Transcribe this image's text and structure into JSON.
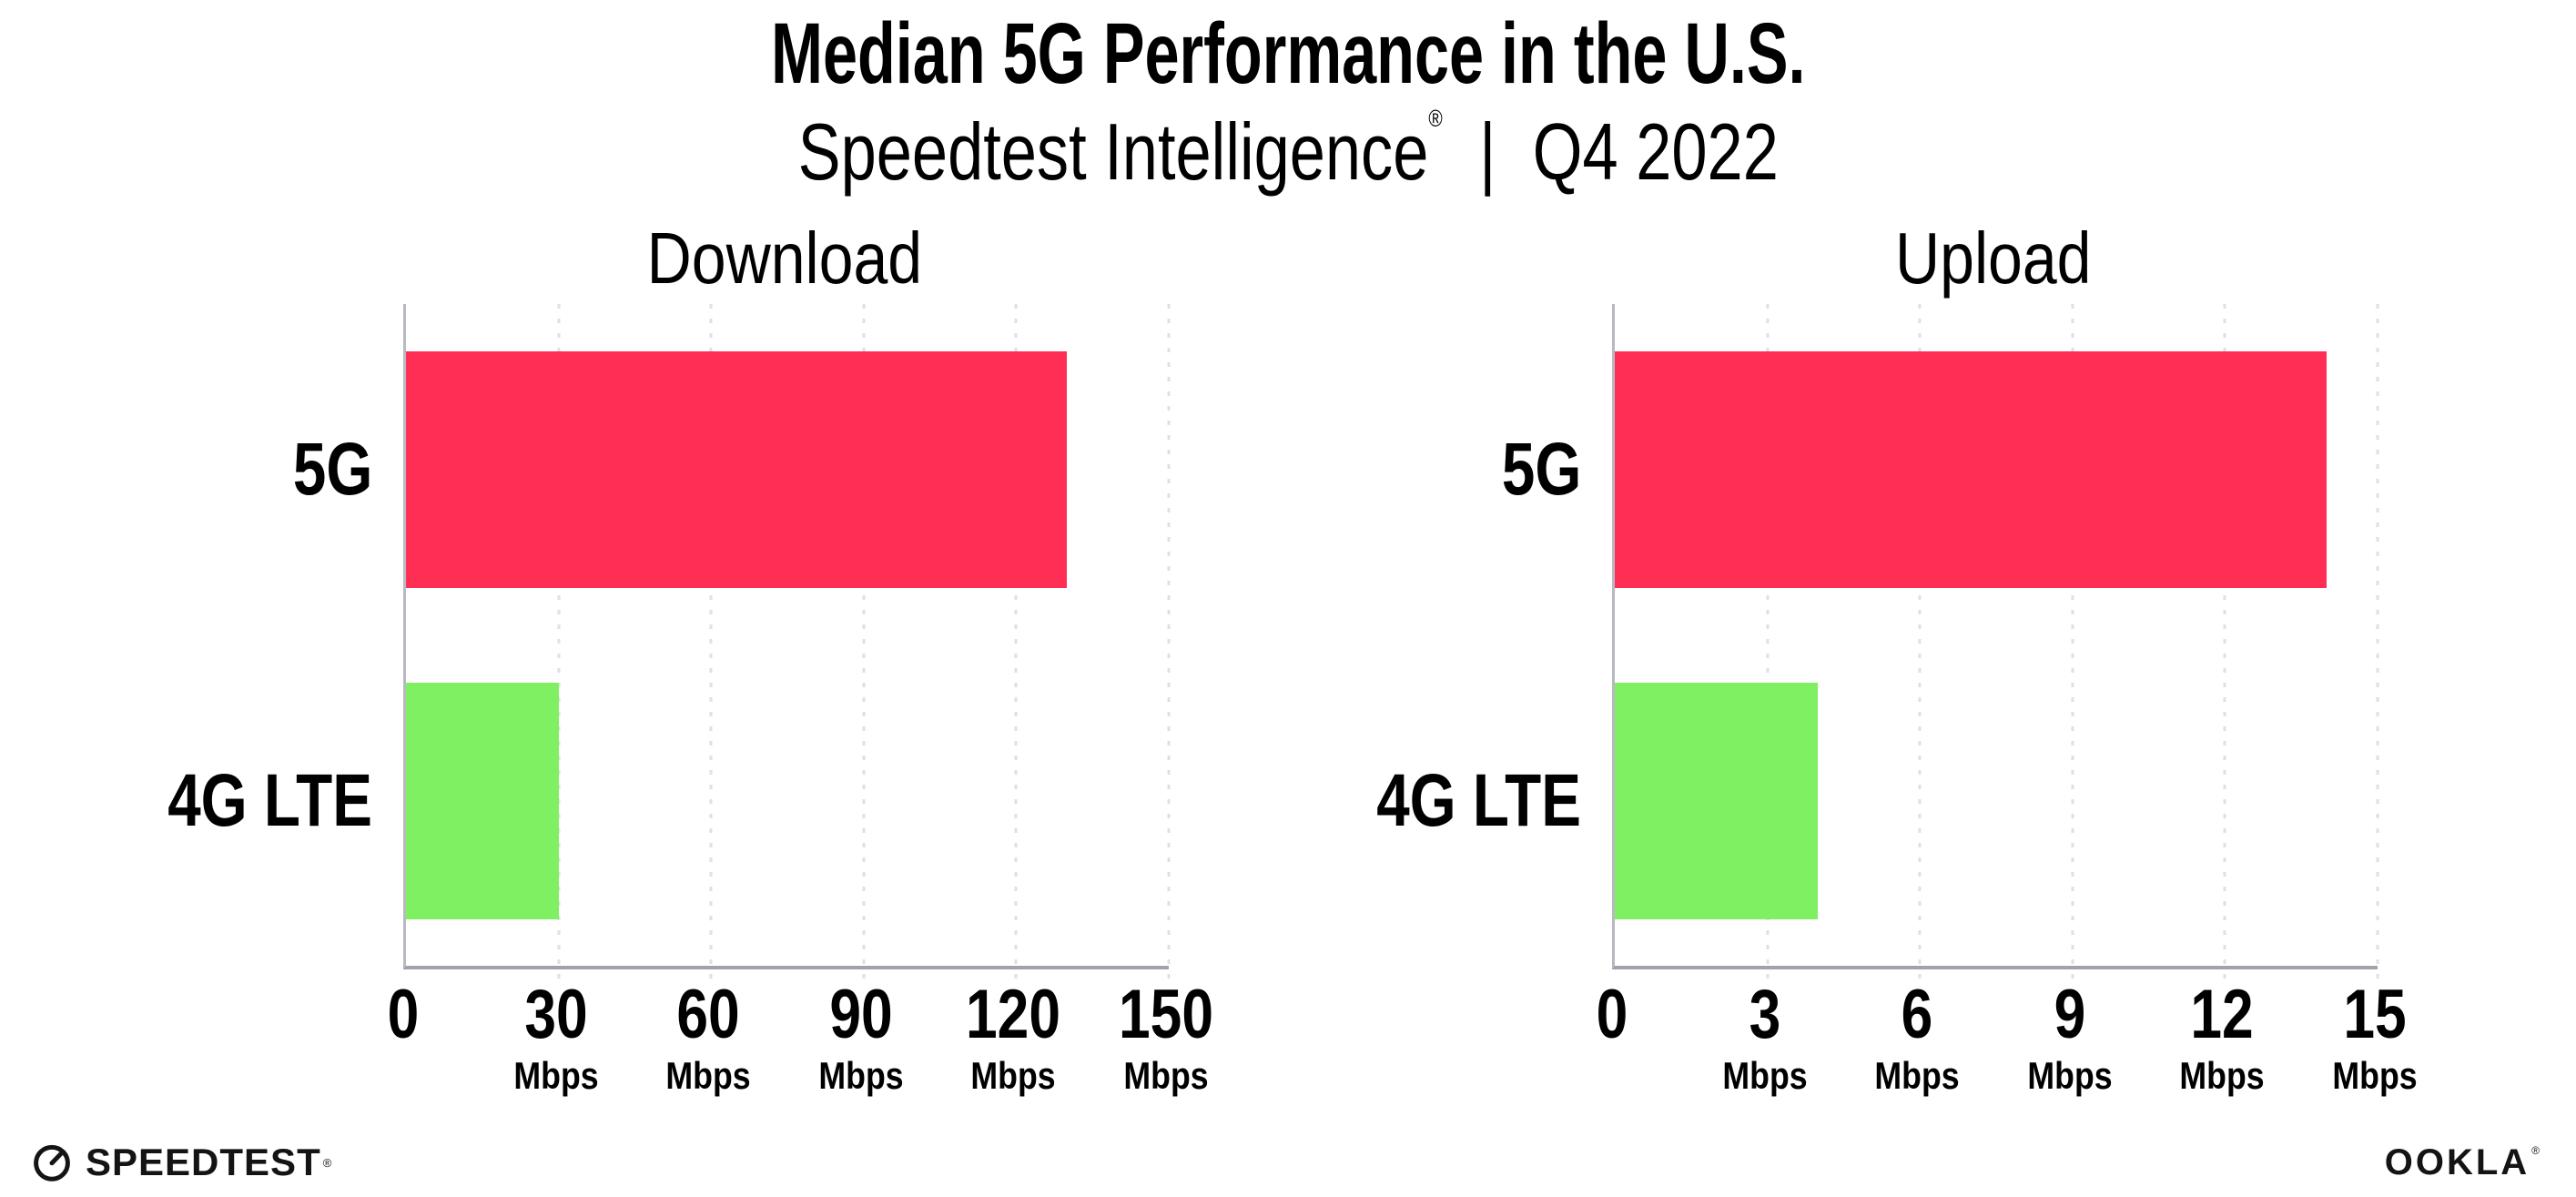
{
  "header": {
    "title": "Median 5G Performance in the U.S.",
    "subtitle_brand": "Speedtest Intelligence",
    "subtitle_reg": "®",
    "subtitle_sep": "|",
    "subtitle_period": "Q4 2022"
  },
  "colors": {
    "bar_5g": "#ff2e55",
    "bar_4g_lte": "#7ef062",
    "gridline": "#dfdfe9",
    "axis_bottom": "#a2a2aa",
    "axis_left": "#b9b9c1",
    "text": "#000000"
  },
  "chart_data": [
    {
      "type": "bar",
      "orientation": "horizontal",
      "title": "Download",
      "categories": [
        "5G",
        "4G LTE"
      ],
      "values": [
        130,
        30
      ],
      "unit": "Mbps",
      "xlim": [
        0,
        150
      ],
      "xticks": [
        0,
        30,
        60,
        90,
        120,
        150
      ],
      "bar_colors": [
        "#ff2e55",
        "#7ef062"
      ],
      "grid": "dotted-vertical",
      "legend": "none",
      "value_labels": "none"
    },
    {
      "type": "bar",
      "orientation": "horizontal",
      "title": "Upload",
      "categories": [
        "5G",
        "4G LTE"
      ],
      "values": [
        14,
        4
      ],
      "unit": "Mbps",
      "xlim": [
        0,
        15
      ],
      "xticks": [
        0,
        3,
        6,
        9,
        12,
        15
      ],
      "bar_colors": [
        "#ff2e55",
        "#7ef062"
      ],
      "grid": "dotted-vertical",
      "legend": "none",
      "value_labels": "none"
    }
  ],
  "footer": {
    "speedtest_logo": "SPEEDTEST",
    "speedtest_reg": "®",
    "speedtest_icon": "gauge-icon",
    "ookla_logo": "OOKLA",
    "ookla_reg": "®"
  }
}
